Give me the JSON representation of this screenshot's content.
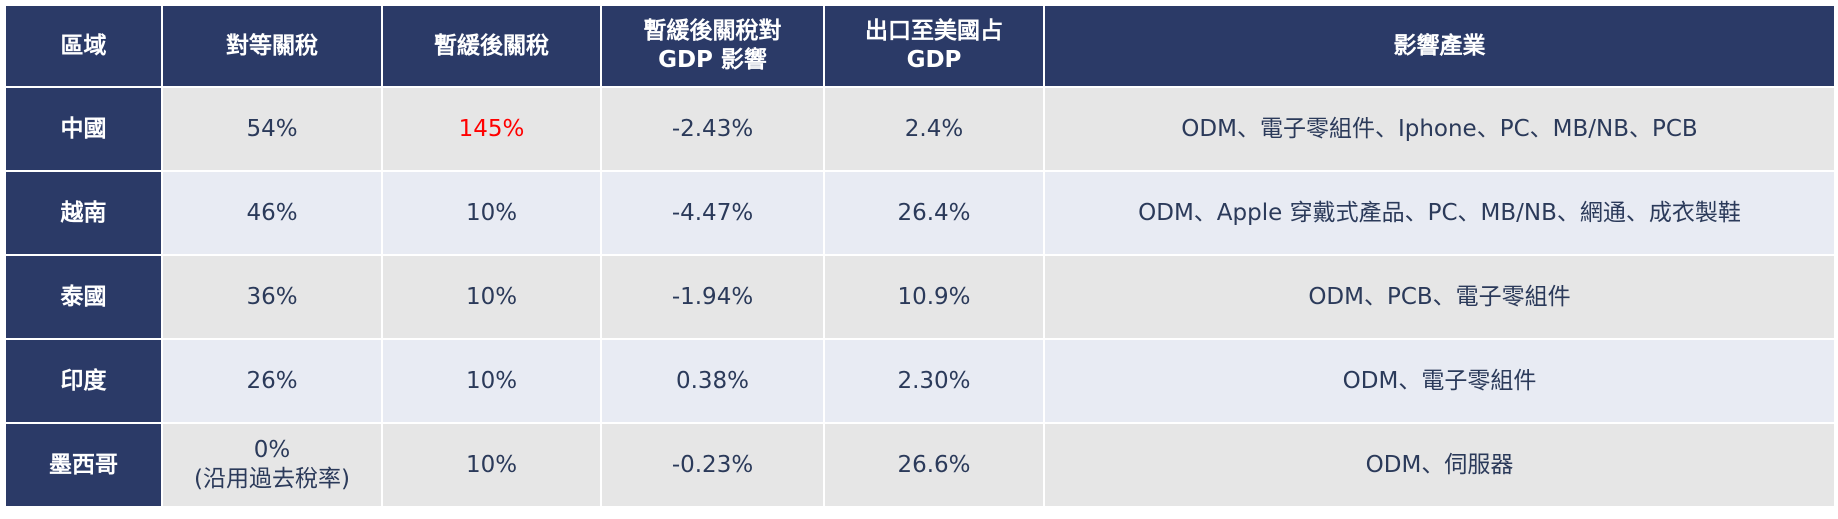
{
  "table": {
    "header": [
      "區域",
      "對等關稅",
      "暫緩後關稅",
      "暫緩後關稅對\nGDP 影響",
      "出口至美國占\nGDP",
      "影響產業"
    ],
    "rows": [
      [
        "中國",
        "54%",
        "145%",
        "-2.43%",
        "2.4%",
        "ODM、電子零組件、Iphone、PC、MB/NB、PCB"
      ],
      [
        "越南",
        "46%",
        "10%",
        "-4.47%",
        "26.4%",
        "ODM、Apple 穿戴式產品、PC、MB/NB、網通、成衣製鞋"
      ],
      [
        "泰國",
        "36%",
        "10%",
        "-1.94%",
        "10.9%",
        "ODM、PCB、電子零組件"
      ],
      [
        "印度",
        "26%",
        "10%",
        "0.38%",
        "2.30%",
        "ODM、電子零組件"
      ],
      [
        "墨西哥",
        "0%\n(沿用過去稅率)",
        "10%",
        "-0.23%",
        "26.6%",
        "ODM、伺服器"
      ]
    ]
  }
}
